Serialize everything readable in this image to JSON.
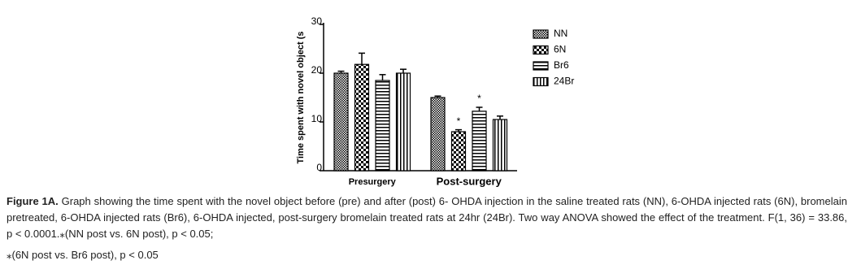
{
  "chart_data": {
    "type": "bar",
    "y_label": "Time spent with novel object (s",
    "categories": [
      "Presurgery",
      "Post-surgery"
    ],
    "ylim": [
      0,
      30
    ],
    "yticks": [
      0,
      10,
      20,
      30
    ],
    "series": [
      {
        "name": "NN",
        "color": "#000000",
        "pattern": "dots",
        "values": [
          20,
          15
        ],
        "errors": [
          0.4,
          0.3
        ],
        "marks": [
          null,
          null
        ]
      },
      {
        "name": "6N",
        "color": "#000000",
        "pattern": "checker",
        "values": [
          21.8,
          8
        ],
        "errors": [
          2.3,
          0.4
        ],
        "marks": [
          null,
          "*"
        ]
      },
      {
        "name": "Br6",
        "color": "#000000",
        "pattern": "hlines",
        "values": [
          18.5,
          12.2
        ],
        "errors": [
          1.2,
          0.8
        ],
        "marks": [
          null,
          "*"
        ]
      },
      {
        "name": "24Br",
        "color": "#000000",
        "pattern": "vlines",
        "values": [
          20,
          10.5
        ],
        "errors": [
          0.8,
          0.7
        ],
        "marks": [
          null,
          null
        ]
      }
    ]
  },
  "caption": {
    "label": "Figure 1A.",
    "text": "Graph showing the time spent with the novel object before (pre) and after (post) 6- OHDA injection in the saline treated rats (NN), 6-OHDA injected rats (6N), bromelain pretreated, 6-OHDA injected rats (Br6), 6-OHDA injected, post-surgery bromelain treated rats at 24hr (24Br). Two way ANOVA showed the effect of the treatment. F(1, 36) = 33.86, p < 0.0001.⁎(NN post vs. 6N post), p < 0.05;",
    "note": "⁎(6N post vs. Br6 post), p < 0.05"
  }
}
